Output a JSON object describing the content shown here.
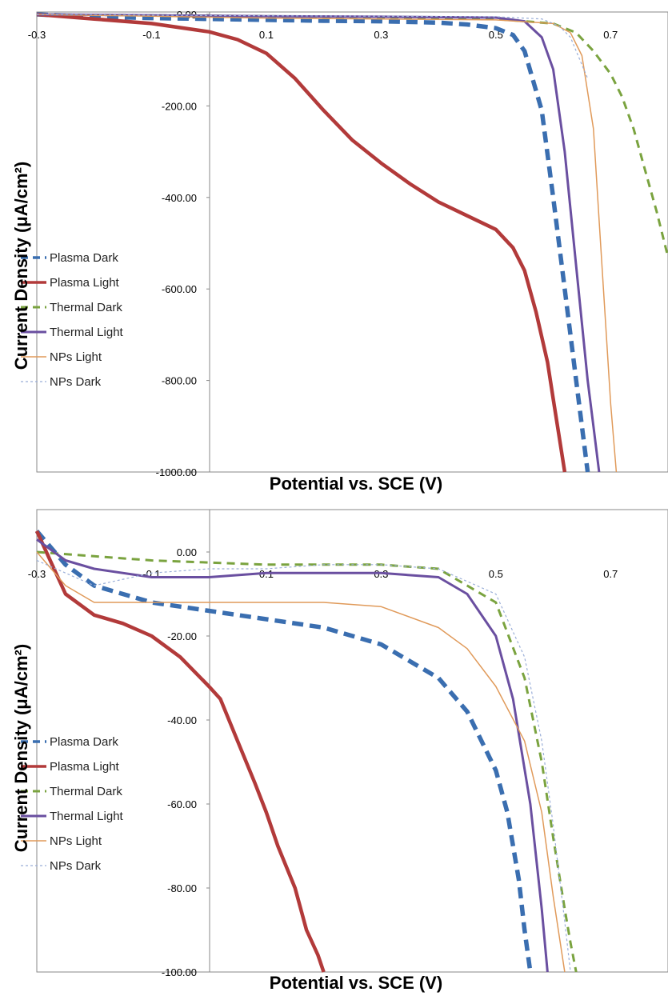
{
  "chart_data": [
    {
      "type": "line",
      "xlabel": "Potential vs. SCE  (V)",
      "ylabel": "Current  Density  (μA/cm²)",
      "xlim": [
        -0.3,
        0.8
      ],
      "ylim": [
        -1000,
        0
      ],
      "x_ticks": [
        -0.3,
        -0.1,
        0.1,
        0.3,
        0.5,
        0.7
      ],
      "x_tick_labels": [
        "-0.3",
        "-0.1",
        "0.1",
        "0.3",
        "0.5",
        "0.7"
      ],
      "y_ticks": [
        0,
        -200,
        -400,
        -600,
        -800,
        -1000
      ],
      "y_tick_labels": [
        "0.00",
        "-200.00",
        "-400.00",
        "-600.00",
        "-800.00",
        "-1000.00"
      ],
      "legend_position": "left",
      "series": [
        {
          "name": "Plasma Dark",
          "color": "#3a6eb0",
          "style": "dash-thick",
          "x": [
            -0.3,
            -0.2,
            -0.1,
            0.0,
            0.1,
            0.2,
            0.3,
            0.4,
            0.45,
            0.5,
            0.53,
            0.55,
            0.58,
            0.6,
            0.62,
            0.64,
            0.65,
            0.66
          ],
          "y": [
            0,
            -5,
            -8,
            -10,
            -12,
            -14,
            -15,
            -18,
            -22,
            -30,
            -45,
            -80,
            -210,
            -400,
            -600,
            -800,
            -900,
            -1000
          ]
        },
        {
          "name": "Plasma Light",
          "color": "#b23a3a",
          "style": "solid-thick",
          "x": [
            -0.3,
            -0.2,
            -0.1,
            0.0,
            0.05,
            0.1,
            0.15,
            0.2,
            0.25,
            0.3,
            0.35,
            0.4,
            0.45,
            0.5,
            0.53,
            0.55,
            0.57,
            0.59,
            0.6,
            0.61,
            0.62
          ],
          "y": [
            0,
            -10,
            -20,
            -38,
            -55,
            -85,
            -140,
            -210,
            -275,
            -325,
            -370,
            -410,
            -440,
            -470,
            -510,
            -560,
            -650,
            -760,
            -840,
            -920,
            -1000
          ]
        },
        {
          "name": "Thermal Dark",
          "color": "#7aa33f",
          "style": "dash",
          "x": [
            -0.3,
            -0.1,
            0.1,
            0.3,
            0.5,
            0.6,
            0.64,
            0.67,
            0.7,
            0.72,
            0.74,
            0.76,
            0.78,
            0.8
          ],
          "y": [
            0,
            -2,
            -4,
            -6,
            -10,
            -20,
            -40,
            -80,
            -130,
            -180,
            -250,
            -340,
            -430,
            -530
          ]
        },
        {
          "name": "Thermal Light",
          "color": "#6a4fa0",
          "style": "solid",
          "x": [
            -0.3,
            -0.1,
            0.1,
            0.3,
            0.5,
            0.55,
            0.58,
            0.6,
            0.62,
            0.64,
            0.66,
            0.67,
            0.68
          ],
          "y": [
            0,
            -2,
            -4,
            -5,
            -7,
            -15,
            -50,
            -120,
            -300,
            -550,
            -800,
            -900,
            -1000
          ]
        },
        {
          "name": "NPs Light",
          "color": "#e09a5a",
          "style": "solid-thin",
          "x": [
            -0.3,
            -0.1,
            0.1,
            0.3,
            0.5,
            0.6,
            0.63,
            0.65,
            0.67,
            0.68,
            0.69,
            0.7,
            0.71
          ],
          "y": [
            0,
            -4,
            -8,
            -10,
            -12,
            -20,
            -40,
            -90,
            -250,
            -450,
            -650,
            -850,
            -1000
          ]
        },
        {
          "name": "NPs Dark",
          "color": "#9aaed8",
          "style": "dot",
          "x": [
            -0.3,
            -0.1,
            0.1,
            0.3,
            0.5,
            0.58,
            0.61,
            0.63,
            0.64,
            0.65,
            0.66
          ],
          "y": [
            0,
            -2,
            -3,
            -4,
            -5,
            -10,
            -25,
            -50,
            -80,
            -110,
            -140
          ]
        }
      ]
    },
    {
      "type": "line",
      "xlabel": "Potential vs. SCE  (V)",
      "ylabel": "Current  Density  (μA/cm²)",
      "xlim": [
        -0.3,
        0.8
      ],
      "ylim": [
        -100,
        0
      ],
      "x_ticks": [
        -0.3,
        -0.1,
        0.1,
        0.3,
        0.5,
        0.7
      ],
      "x_tick_labels": [
        "-0.3",
        "-0.1",
        "0.1",
        "0.3",
        "0.5",
        "0.7"
      ],
      "y_ticks": [
        0,
        -20,
        -40,
        -60,
        -80,
        -100
      ],
      "y_tick_labels": [
        "0.00",
        "-20.00",
        "-40.00",
        "-60.00",
        "-80.00",
        "-100.00"
      ],
      "legend_position": "left",
      "series": [
        {
          "name": "Plasma Dark",
          "color": "#3a6eb0",
          "style": "dash-thick",
          "x": [
            -0.3,
            -0.25,
            -0.2,
            -0.1,
            0.0,
            0.1,
            0.2,
            0.3,
            0.4,
            0.45,
            0.5,
            0.52,
            0.54,
            0.55,
            0.56
          ],
          "y": [
            5,
            -3,
            -8,
            -12,
            -14,
            -16,
            -18,
            -22,
            -30,
            -38,
            -52,
            -62,
            -78,
            -90,
            -100
          ]
        },
        {
          "name": "Plasma Light",
          "color": "#b23a3a",
          "style": "solid-thick",
          "x": [
            -0.3,
            -0.25,
            -0.2,
            -0.15,
            -0.1,
            -0.05,
            0.0,
            0.02,
            0.05,
            0.08,
            0.1,
            0.12,
            0.15,
            0.17,
            0.19,
            0.2
          ],
          "y": [
            5,
            -10,
            -15,
            -17,
            -20,
            -25,
            -32,
            -35,
            -45,
            -55,
            -62,
            -70,
            -80,
            -90,
            -96,
            -100
          ]
        },
        {
          "name": "Thermal Dark",
          "color": "#7aa33f",
          "style": "dash",
          "x": [
            -0.3,
            -0.2,
            -0.1,
            0.1,
            0.3,
            0.4,
            0.5,
            0.55,
            0.58,
            0.6,
            0.62,
            0.63,
            0.64
          ],
          "y": [
            0,
            -1,
            -2,
            -3,
            -3,
            -4,
            -12,
            -30,
            -50,
            -68,
            -85,
            -93,
            -100
          ]
        },
        {
          "name": "Thermal Light",
          "color": "#6a4fa0",
          "style": "solid",
          "x": [
            -0.3,
            -0.25,
            -0.2,
            -0.1,
            0.0,
            0.1,
            0.2,
            0.3,
            0.4,
            0.45,
            0.5,
            0.53,
            0.56,
            0.58,
            0.59
          ],
          "y": [
            3,
            -2,
            -4,
            -6,
            -6,
            -5,
            -5,
            -5,
            -6,
            -10,
            -20,
            -35,
            -60,
            -85,
            -100
          ]
        },
        {
          "name": "NPs Light",
          "color": "#e09a5a",
          "style": "solid-thin",
          "x": [
            -0.3,
            -0.25,
            -0.2,
            -0.1,
            0.0,
            0.1,
            0.2,
            0.3,
            0.4,
            0.45,
            0.5,
            0.55,
            0.58,
            0.6,
            0.62
          ],
          "y": [
            0,
            -8,
            -12,
            -12,
            -12,
            -12,
            -12,
            -13,
            -18,
            -23,
            -32,
            -45,
            -62,
            -82,
            -100
          ]
        },
        {
          "name": "NPs Dark",
          "color": "#9aaed8",
          "style": "dot",
          "x": [
            -0.3,
            -0.2,
            -0.1,
            0.0,
            0.1,
            0.2,
            0.3,
            0.4,
            0.5,
            0.55,
            0.58,
            0.6,
            0.62,
            0.63
          ],
          "y": [
            -2,
            -8,
            -5,
            -4,
            -4,
            -3,
            -3,
            -4,
            -10,
            -25,
            -45,
            -65,
            -88,
            -100
          ]
        }
      ]
    }
  ]
}
